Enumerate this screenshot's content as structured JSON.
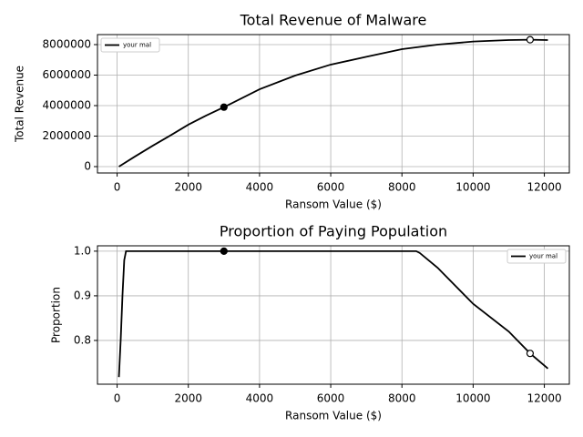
{
  "chart_data": [
    {
      "type": "line",
      "title": "Total Revenue of Malware",
      "xlabel": "Ransom Value ($)",
      "ylabel": "Total Revenue",
      "x": [
        50,
        500,
        1000,
        1500,
        2000,
        2500,
        3000,
        4000,
        5000,
        6000,
        7000,
        8000,
        9000,
        10000,
        11000,
        11600,
        12100
      ],
      "series": [
        {
          "name": "your mal",
          "color": "#000000",
          "values": [
            0,
            660000,
            1370000,
            2050000,
            2750000,
            3350000,
            3900000,
            5070000,
            5970000,
            6690000,
            7200000,
            7700000,
            8000000,
            8200000,
            8300000,
            8320000,
            8300000
          ]
        }
      ],
      "points": {
        "x": [
          3000,
          11600
        ],
        "y": [
          3900000,
          8320000
        ],
        "filled": [
          true,
          false
        ]
      },
      "xlim": [
        -552,
        12702
      ],
      "ylim": [
        -418000,
        8657000
      ],
      "xticks": [
        0,
        2000,
        4000,
        6000,
        8000,
        10000,
        12000
      ],
      "yticks": [
        0,
        2000000,
        4000000,
        6000000,
        8000000
      ],
      "grid": true,
      "legend": "upper left"
    },
    {
      "type": "line",
      "title": "Proportion of Paying Population",
      "xlabel": "Ransom Value ($)",
      "ylabel": "Proportion",
      "x": [
        50,
        100,
        150,
        200,
        250,
        3000,
        8400,
        8500,
        9000,
        10000,
        11000,
        11600,
        12100
      ],
      "series": [
        {
          "name": "your mal",
          "color": "#000000",
          "values": [
            0.718,
            0.8,
            0.9,
            0.98,
            1.0,
            1.0,
            1.0,
            0.996,
            0.963,
            0.882,
            0.82,
            0.771,
            0.737
          ]
        }
      ],
      "points": {
        "x": [
          3000,
          11600
        ],
        "y": [
          1.0,
          0.771
        ],
        "filled": [
          true,
          false
        ]
      },
      "xlim": [
        -552,
        12702
      ],
      "ylim": [
        0.702,
        1.012
      ],
      "xticks": [
        0,
        2000,
        4000,
        6000,
        8000,
        10000,
        12000
      ],
      "yticks": [
        0.8,
        0.9,
        {
          "value": 1,
          "label": "1.0"
        }
      ],
      "grid": true,
      "legend": "upper right"
    }
  ]
}
